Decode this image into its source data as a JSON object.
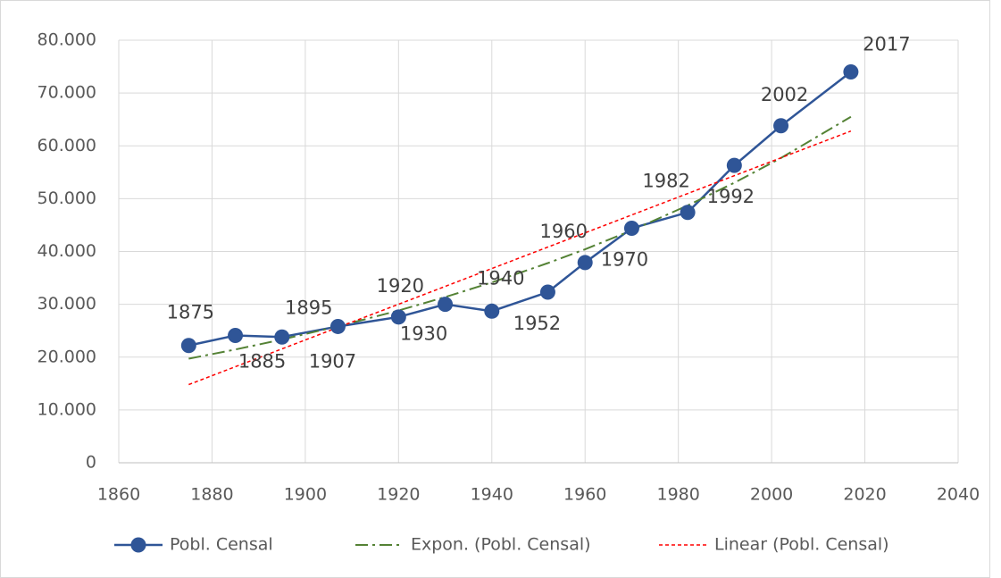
{
  "chart_data": {
    "type": "line",
    "x": [
      1875,
      1885,
      1895,
      1907,
      1920,
      1930,
      1940,
      1952,
      1960,
      1970,
      1982,
      1992,
      2002,
      2017
    ],
    "series": [
      {
        "name": "Pobl. Censal",
        "color": "#2f5597",
        "style": "solid",
        "markers": true,
        "values": [
          22200,
          24100,
          23800,
          25800,
          27600,
          30000,
          28700,
          32300,
          37900,
          44400,
          47400,
          56300,
          63800,
          74000
        ]
      },
      {
        "name": "Expon. (Pobl. Censal)",
        "color": "#548235",
        "style": "dashdot",
        "markers": false,
        "values": [
          19700,
          21440,
          23330,
          25830,
          28820,
          31370,
          34140,
          37800,
          40420,
          43990,
          48710,
          53010,
          57690,
          65500
        ]
      },
      {
        "name": "Linear (Pobl. Censal)",
        "color": "#ff0000",
        "style": "dotted",
        "markers": false,
        "values": [
          14800,
          18180,
          21560,
          25620,
          30010,
          33390,
          36770,
          40830,
          43530,
          46910,
          50970,
          54350,
          57730,
          62800
        ]
      }
    ],
    "xlim": [
      1860,
      2040
    ],
    "xticks": [
      1860,
      1880,
      1900,
      1920,
      1940,
      1960,
      1980,
      2000,
      2020,
      2040
    ],
    "ylim": [
      0,
      80000
    ],
    "yticks": [
      0,
      {
        "value": 10000,
        "label": "10.000"
      },
      {
        "value": 20000,
        "label": "20.000"
      },
      {
        "value": 30000,
        "label": "30.000"
      },
      {
        "value": 40000,
        "label": "40.000"
      },
      {
        "value": 50000,
        "label": "50.000"
      },
      {
        "value": 60000,
        "label": "60.000"
      },
      {
        "value": 70000,
        "label": "70.000"
      },
      {
        "value": 80000,
        "label": "80.000"
      }
    ],
    "grid": true,
    "legend": "bottom"
  }
}
